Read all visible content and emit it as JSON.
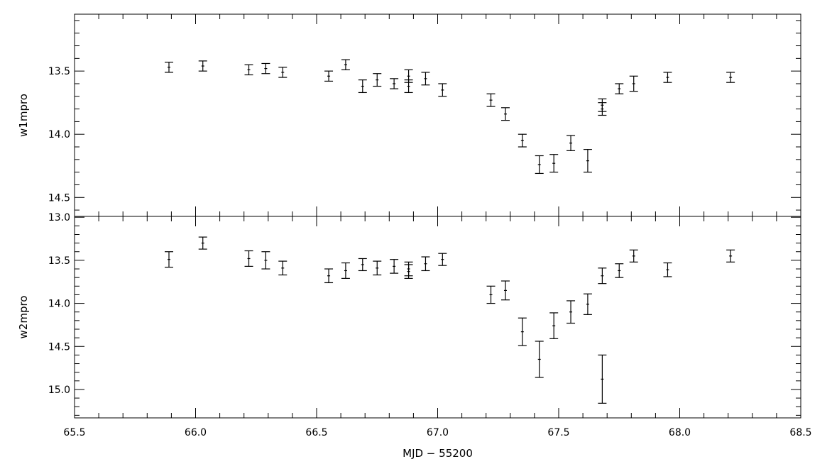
{
  "chart_data": [
    {
      "type": "scatter",
      "error_bars": true,
      "ylabel": "w1mpro",
      "xlim": [
        65.5,
        68.5
      ],
      "ylim": [
        14.65,
        13.05
      ],
      "y_inverted": true,
      "yticks": [
        "13.5",
        "14.0",
        "14.5"
      ],
      "points": [
        {
          "x": 65.89,
          "y": 13.47,
          "err": 0.04
        },
        {
          "x": 66.03,
          "y": 13.46,
          "err": 0.04
        },
        {
          "x": 66.22,
          "y": 13.49,
          "err": 0.04
        },
        {
          "x": 66.29,
          "y": 13.48,
          "err": 0.04
        },
        {
          "x": 66.36,
          "y": 13.51,
          "err": 0.04
        },
        {
          "x": 66.55,
          "y": 13.54,
          "err": 0.04
        },
        {
          "x": 66.62,
          "y": 13.45,
          "err": 0.04
        },
        {
          "x": 66.69,
          "y": 13.62,
          "err": 0.05
        },
        {
          "x": 66.75,
          "y": 13.57,
          "err": 0.05
        },
        {
          "x": 66.82,
          "y": 13.6,
          "err": 0.04
        },
        {
          "x": 66.88,
          "y": 13.54,
          "err": 0.05
        },
        {
          "x": 66.88,
          "y": 13.62,
          "err": 0.05
        },
        {
          "x": 66.95,
          "y": 13.56,
          "err": 0.05
        },
        {
          "x": 67.02,
          "y": 13.65,
          "err": 0.05
        },
        {
          "x": 67.22,
          "y": 13.73,
          "err": 0.05
        },
        {
          "x": 67.28,
          "y": 13.84,
          "err": 0.05
        },
        {
          "x": 67.35,
          "y": 14.05,
          "err": 0.05
        },
        {
          "x": 67.42,
          "y": 14.24,
          "err": 0.07
        },
        {
          "x": 67.48,
          "y": 14.23,
          "err": 0.07
        },
        {
          "x": 67.55,
          "y": 14.07,
          "err": 0.06
        },
        {
          "x": 67.62,
          "y": 14.21,
          "err": 0.09
        },
        {
          "x": 67.68,
          "y": 13.77,
          "err": 0.05
        },
        {
          "x": 67.68,
          "y": 13.8,
          "err": 0.05
        },
        {
          "x": 67.75,
          "y": 13.64,
          "err": 0.04
        },
        {
          "x": 67.81,
          "y": 13.6,
          "err": 0.06
        },
        {
          "x": 67.95,
          "y": 13.55,
          "err": 0.04
        },
        {
          "x": 68.21,
          "y": 13.55,
          "err": 0.04
        }
      ]
    },
    {
      "type": "scatter",
      "error_bars": true,
      "xlabel": "MJD − 55200",
      "ylabel": "w2mpro",
      "xlim": [
        65.5,
        68.5
      ],
      "ylim": [
        15.33,
        12.99
      ],
      "y_inverted": true,
      "xticks": [
        "65.5",
        "66.0",
        "66.5",
        "67.0",
        "67.5",
        "68.0",
        "68.5"
      ],
      "yticks": [
        "13.0",
        "13.5",
        "14.0",
        "14.5",
        "15.0"
      ],
      "points": [
        {
          "x": 65.89,
          "y": 13.49,
          "err": 0.09
        },
        {
          "x": 66.03,
          "y": 13.3,
          "err": 0.07
        },
        {
          "x": 66.22,
          "y": 13.48,
          "err": 0.09
        },
        {
          "x": 66.29,
          "y": 13.5,
          "err": 0.1
        },
        {
          "x": 66.36,
          "y": 13.59,
          "err": 0.08
        },
        {
          "x": 66.55,
          "y": 13.68,
          "err": 0.08
        },
        {
          "x": 66.62,
          "y": 13.62,
          "err": 0.09
        },
        {
          "x": 66.69,
          "y": 13.55,
          "err": 0.07
        },
        {
          "x": 66.75,
          "y": 13.59,
          "err": 0.08
        },
        {
          "x": 66.82,
          "y": 13.57,
          "err": 0.08
        },
        {
          "x": 66.88,
          "y": 13.6,
          "err": 0.08
        },
        {
          "x": 66.88,
          "y": 13.63,
          "err": 0.08
        },
        {
          "x": 66.95,
          "y": 13.54,
          "err": 0.08
        },
        {
          "x": 67.02,
          "y": 13.49,
          "err": 0.07
        },
        {
          "x": 67.22,
          "y": 13.9,
          "err": 0.1
        },
        {
          "x": 67.28,
          "y": 13.85,
          "err": 0.11
        },
        {
          "x": 67.35,
          "y": 14.33,
          "err": 0.16
        },
        {
          "x": 67.42,
          "y": 14.65,
          "err": 0.21
        },
        {
          "x": 67.48,
          "y": 14.26,
          "err": 0.15
        },
        {
          "x": 67.55,
          "y": 14.1,
          "err": 0.13
        },
        {
          "x": 67.62,
          "y": 14.01,
          "err": 0.12
        },
        {
          "x": 67.68,
          "y": 13.68,
          "err": 0.09
        },
        {
          "x": 67.75,
          "y": 13.62,
          "err": 0.08
        },
        {
          "x": 67.81,
          "y": 13.45,
          "err": 0.07
        },
        {
          "x": 67.95,
          "y": 13.61,
          "err": 0.08
        },
        {
          "x": 68.21,
          "y": 13.45,
          "err": 0.07
        },
        {
          "x": 67.68,
          "y": 14.88,
          "err": 0.28
        }
      ]
    }
  ]
}
